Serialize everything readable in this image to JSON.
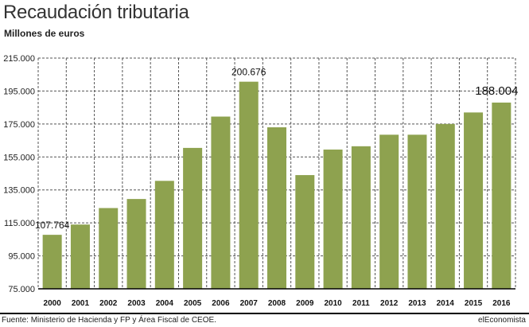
{
  "header": {
    "title": "Recaudación tributaria",
    "subtitle": "Millones de euros"
  },
  "footer": {
    "source": "Fuente: Ministerio de Hacienda y FP y Área Fiscal de CEOE.",
    "credit": "elEconomista"
  },
  "colors": {
    "bar": "#8ea24f",
    "grid": "#555555",
    "axis": "#000000"
  },
  "chart_data": {
    "type": "bar",
    "title": "Recaudación tributaria",
    "subtitle": "Millones de euros",
    "xlabel": "",
    "ylabel": "",
    "ylim": [
      75000,
      215000
    ],
    "yticks": [
      75000,
      95000,
      115000,
      135000,
      155000,
      175000,
      195000,
      215000
    ],
    "ytick_labels": [
      "75.000",
      "95.000",
      "115.000",
      "135.000",
      "155.000",
      "175.000",
      "195.000",
      "215.000"
    ],
    "grid": true,
    "categories": [
      "2000",
      "2001",
      "2002",
      "2003",
      "2004",
      "2005",
      "2006",
      "2007",
      "2008",
      "2009",
      "2010",
      "2011",
      "2012",
      "2013",
      "2014",
      "2015",
      "2016"
    ],
    "values": [
      107764,
      114000,
      124000,
      129500,
      140500,
      160500,
      179500,
      200676,
      173000,
      144000,
      159500,
      161500,
      168500,
      168500,
      175000,
      182000,
      188004
    ],
    "annotations": [
      {
        "index": 0,
        "label": "107.764"
      },
      {
        "index": 7,
        "label": "200.676"
      },
      {
        "index": 16,
        "label": "188.004"
      }
    ]
  }
}
